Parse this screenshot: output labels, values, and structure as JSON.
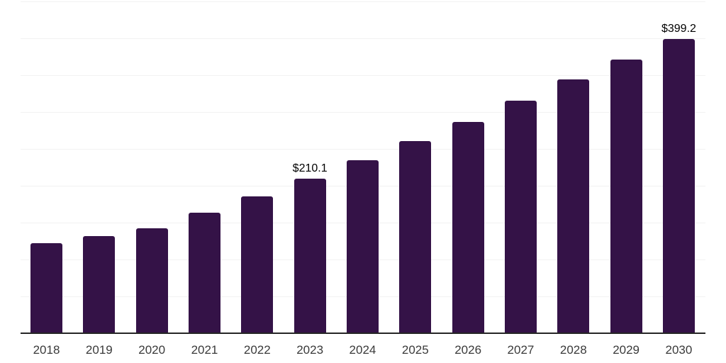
{
  "chart_data": {
    "type": "bar",
    "categories": [
      "2018",
      "2019",
      "2020",
      "2021",
      "2022",
      "2023",
      "2024",
      "2025",
      "2026",
      "2027",
      "2028",
      "2029",
      "2030"
    ],
    "values": [
      122.0,
      131.7,
      142.3,
      163.9,
      185.6,
      210.1,
      234.6,
      260.6,
      287.0,
      315.4,
      343.8,
      371.2,
      399.2
    ],
    "data_labels": [
      "",
      "",
      "",
      "",
      "",
      "$210.1",
      "",
      "",
      "",
      "",
      "",
      "",
      "$399.2"
    ],
    "title": "",
    "xlabel": "",
    "ylabel": "",
    "ylim": [
      0,
      450
    ],
    "gridline_step": 50,
    "grid": true,
    "legend": "none",
    "colors": {
      "bar": "#341247",
      "gridline": "#f2f2f2",
      "axis_line": "#262626",
      "tick_label": "#3a3a3a",
      "value_label": "#000000",
      "background": "#ffffff"
    }
  }
}
